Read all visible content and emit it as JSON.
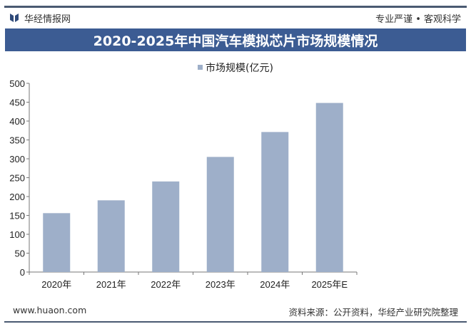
{
  "header": {
    "brand": "华经情报网",
    "slogan": "专业严谨 • 客观科学"
  },
  "footer": {
    "website": "www.huaon.com",
    "source": "资料来源：公开资料，华经产业研究院整理"
  },
  "watermark": "华经产业研究院",
  "colors": {
    "bar": "#9eafc9",
    "banner": "#3c5c93",
    "rule": "#4a5a72"
  },
  "chart_data": {
    "type": "bar",
    "title": "2020-2025年中国汽车模拟芯片市场规模情况",
    "categories": [
      "2020年",
      "2021年",
      "2022年",
      "2023年",
      "2024年",
      "2025年E"
    ],
    "series": [
      {
        "name": "市场规模(亿元)",
        "values": [
          156,
          190,
          240,
          305,
          371,
          448
        ]
      }
    ],
    "ylim": [
      0,
      500
    ],
    "yticks": [
      0,
      50,
      100,
      150,
      200,
      250,
      300,
      350,
      400,
      450,
      500
    ],
    "legend": "top-center",
    "grid": false
  }
}
